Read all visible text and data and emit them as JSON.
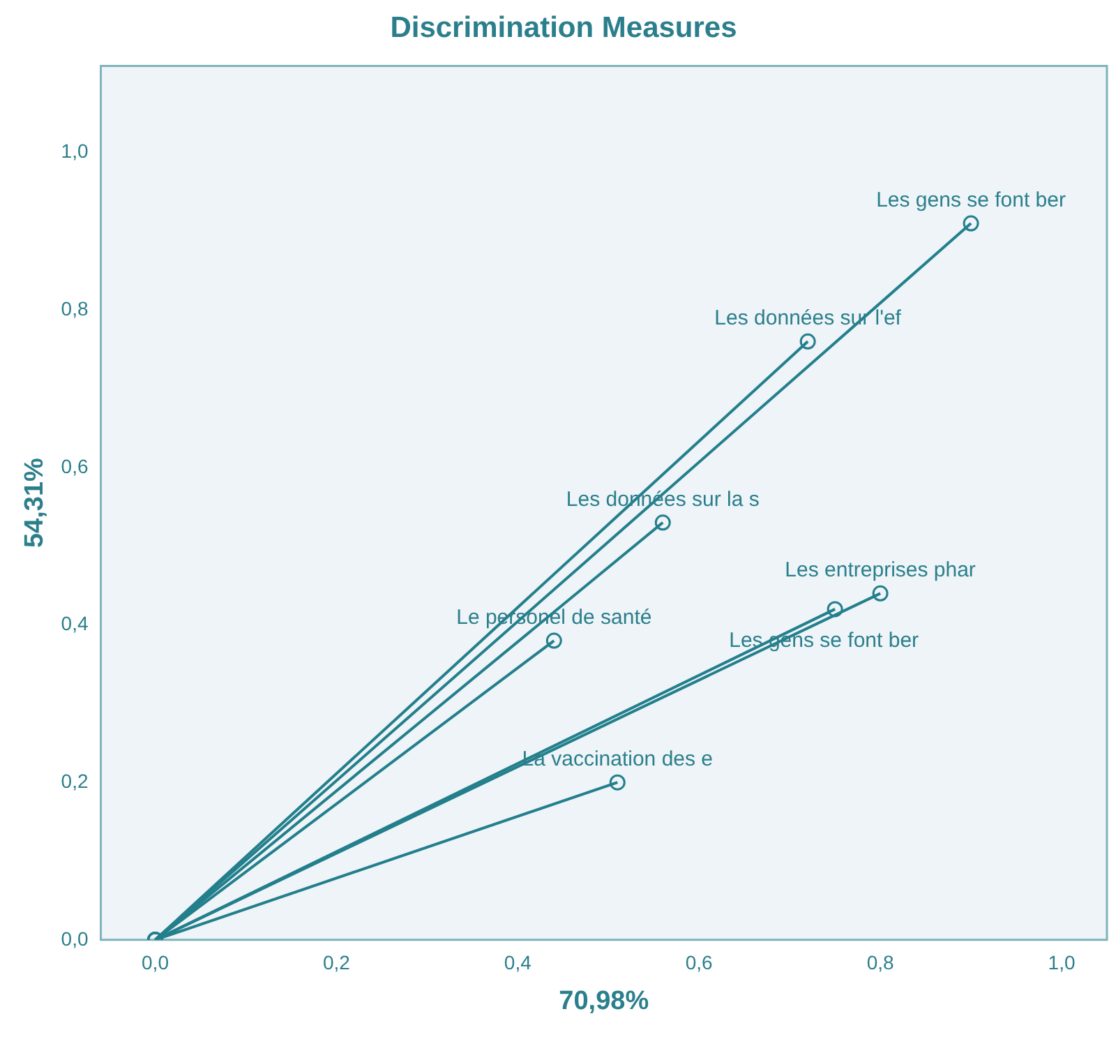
{
  "chart_data": {
    "type": "line",
    "title": "Discrimination Measures",
    "xlabel": "70,98%",
    "ylabel": "54,31%",
    "xlim": [
      -0.06,
      1.05
    ],
    "ylim": [
      0,
      1.11
    ],
    "xticks": [
      {
        "value": 0,
        "label": "0,0"
      },
      {
        "value": 0.2,
        "label": "0,2"
      },
      {
        "value": 0.4,
        "label": "0,4"
      },
      {
        "value": 0.6,
        "label": "0,6"
      },
      {
        "value": 0.8,
        "label": "0,8"
      },
      {
        "value": 1,
        "label": "1,0"
      }
    ],
    "yticks": [
      {
        "value": 0,
        "label": "0,0"
      },
      {
        "value": 0.2,
        "label": "0,2"
      },
      {
        "value": 0.4,
        "label": "0,4"
      },
      {
        "value": 0.6,
        "label": "0,6"
      },
      {
        "value": 0.8,
        "label": "0,8"
      },
      {
        "value": 1,
        "label": "1,0"
      }
    ],
    "grid": false,
    "legend": false,
    "marker": "circle",
    "line_style": "solid",
    "series": [
      {
        "name": "Les gens se font ber",
        "color": "#237f8c",
        "x": [
          0,
          0.9
        ],
        "values": [
          0,
          0.91
        ]
      },
      {
        "name": "Les données sur l'ef",
        "color": "#237f8c",
        "x": [
          0,
          0.72
        ],
        "values": [
          0,
          0.76
        ]
      },
      {
        "name": "Les données sur la s",
        "color": "#237f8c",
        "x": [
          0,
          0.56
        ],
        "values": [
          0,
          0.53
        ]
      },
      {
        "name": "Les entreprises phar",
        "color": "#237f8c",
        "x": [
          0,
          0.8
        ],
        "values": [
          0,
          0.44
        ]
      },
      {
        "name": "Les gens se font ber",
        "color": "#237f8c",
        "x": [
          0,
          0.75
        ],
        "values": [
          0,
          0.42
        ]
      },
      {
        "name": "Le personel de santé",
        "color": "#237f8c",
        "x": [
          0,
          0.44
        ],
        "values": [
          0,
          0.38
        ]
      },
      {
        "name": "La vaccination des e",
        "color": "#237f8c",
        "x": [
          0,
          0.51
        ],
        "values": [
          0,
          0.2
        ]
      }
    ]
  }
}
